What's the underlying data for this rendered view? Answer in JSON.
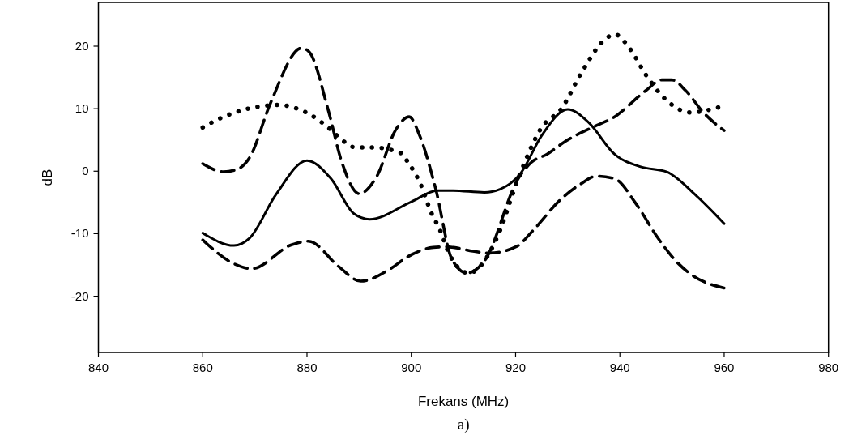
{
  "chart_data": {
    "type": "line",
    "xlabel": "Frekans (MHz)",
    "ylabel": "dB",
    "annotations": [
      "a)"
    ],
    "xlim": [
      840,
      980
    ],
    "xticks": [
      840,
      860,
      880,
      900,
      920,
      940,
      960,
      980
    ],
    "ylim": [
      -29,
      27
    ],
    "yticks": [
      -20,
      -10,
      0,
      10,
      20
    ],
    "marker": "none",
    "series": [
      {
        "color": "#000000",
        "line_style": "solid",
        "x": [
          860,
          866,
          869,
          874,
          880,
          884.6,
          889,
          892,
          900,
          905,
          908,
          914,
          917,
          921,
          925,
          930,
          934,
          939,
          944,
          949,
          954.5,
          960
        ],
        "values": [
          -9.9,
          -11.9,
          -10.7,
          -3.8,
          1.7,
          -1.2,
          -6.8,
          -7.7,
          -4.9,
          -3.1,
          -3.1,
          -3.4,
          -2.9,
          -0.3,
          5.7,
          9.9,
          7.8,
          2.7,
          0.7,
          -0.1,
          -3.8,
          -8.4
        ]
      },
      {
        "color": "#000000",
        "line_style": "dotted",
        "x": [
          860,
          862.7,
          868.7,
          874.6,
          877.4,
          880.3,
          884.6,
          886.7,
          889.3,
          892.4,
          898,
          899.3,
          902,
          903.7,
          905.5,
          907.3,
          911,
          914,
          916.6,
          920.5,
          925,
          928.8,
          932.4,
          936.8,
          939,
          942,
          945,
          949,
          953.5,
          960
        ],
        "values": [
          7.0,
          8.2,
          10.0,
          10.6,
          10.2,
          9.2,
          6.6,
          5.0,
          3.8,
          3.8,
          2.9,
          1.5,
          -2.5,
          -6.4,
          -9.4,
          -13.3,
          -16.3,
          -14.4,
          -10.3,
          -1.2,
          7.0,
          10.0,
          15.4,
          20.8,
          21.9,
          19.5,
          15.4,
          11.3,
          9.4,
          10.5
        ]
      },
      {
        "color": "#000000",
        "line_style": "dashed",
        "x": [
          860,
          864,
          866.6,
          869,
          873,
          879,
          880.5,
          884,
          886.7,
          890,
          893.4,
          897,
          899.6,
          901.6,
          904.7,
          907.8,
          910.7,
          914,
          920.5,
          923,
          926,
          929.6,
          934.7,
          938.8,
          945,
          948,
          950,
          952.6,
          956,
          960
        ],
        "values": [
          1.2,
          -0.1,
          0.3,
          2.2,
          10.9,
          19.7,
          19.0,
          10.0,
          1.4,
          -3.6,
          -0.8,
          6.6,
          8.7,
          5.7,
          -2.9,
          -14.1,
          -16.3,
          -14.4,
          -1.2,
          1.4,
          2.7,
          4.8,
          7.0,
          8.6,
          12.9,
          14.6,
          14.6,
          12.9,
          9.4,
          6.5
        ]
      },
      {
        "color": "#000000",
        "line_style": "dashed",
        "x": [
          860,
          866,
          869.4,
          877,
          880.3,
          886,
          890.3,
          896,
          899.3,
          904.2,
          906.8,
          908.1,
          911.8,
          915,
          920.3,
          923,
          928.8,
          932.4,
          935.5,
          939,
          943,
          947.3,
          951,
          953.8,
          960
        ],
        "values": [
          -11.0,
          -14.8,
          -15.6,
          -11.8,
          -11.2,
          -15.2,
          -17.6,
          -15.6,
          -13.7,
          -12.2,
          -12.1,
          -12.2,
          -12.8,
          -13.1,
          -12.0,
          -9.8,
          -4.4,
          -2.1,
          -0.8,
          -1.2,
          -5.1,
          -10.7,
          -14.6,
          -16.6,
          -18.7
        ]
      }
    ]
  }
}
